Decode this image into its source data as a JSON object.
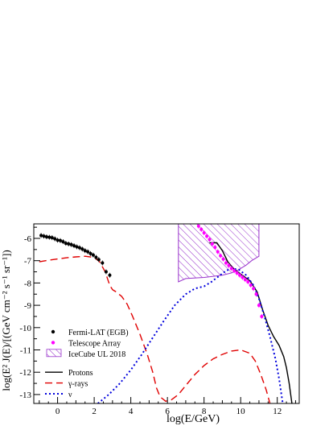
{
  "chart_data": {
    "type": "line",
    "xlabel": "log(E/GeV)",
    "ylabel": "log(E² J(E)/[(GeV cm⁻² s⁻¹ sr⁻¹])",
    "xlim": [
      -1.3,
      13.2
    ],
    "ylim": [
      -13.4,
      -5.35
    ],
    "x_ticks": [
      0,
      2,
      4,
      6,
      8,
      10,
      12
    ],
    "y_ticks": [
      -6,
      -7,
      -8,
      -9,
      -10,
      -11,
      -12,
      -13
    ],
    "legend": {
      "placement": "bottom-left",
      "entries": [
        {
          "label": "Fermi-LAT (EGB)",
          "style": "marker-dot",
          "color": "#000000"
        },
        {
          "label": "Telescope Array",
          "style": "marker-dot",
          "color": "#ff00ff"
        },
        {
          "label": "IceCube UL 2018",
          "style": "hatch",
          "color": "#9933cc"
        },
        {
          "label": "Protons",
          "style": "solid",
          "color": "#000000"
        },
        {
          "label": "γ-rays",
          "style": "dashed",
          "color": "#e00000"
        },
        {
          "label": "ν",
          "style": "dotted",
          "color": "#0000dd"
        }
      ]
    },
    "series": [
      {
        "name": "Fermi-LAT (EGB)",
        "kind": "points",
        "color": "#000000",
        "points": [
          [
            -0.9,
            -5.87
          ],
          [
            -0.75,
            -5.9
          ],
          [
            -0.6,
            -5.93
          ],
          [
            -0.45,
            -5.95
          ],
          [
            -0.3,
            -5.97
          ],
          [
            -0.15,
            -6.02
          ],
          [
            0.0,
            -6.08
          ],
          [
            0.15,
            -6.1
          ],
          [
            0.3,
            -6.15
          ],
          [
            0.45,
            -6.22
          ],
          [
            0.6,
            -6.25
          ],
          [
            0.75,
            -6.28
          ],
          [
            0.9,
            -6.33
          ],
          [
            1.05,
            -6.38
          ],
          [
            1.2,
            -6.42
          ],
          [
            1.35,
            -6.48
          ],
          [
            1.5,
            -6.55
          ],
          [
            1.65,
            -6.6
          ],
          [
            1.8,
            -6.68
          ],
          [
            1.95,
            -6.75
          ],
          [
            2.1,
            -6.85
          ],
          [
            2.25,
            -6.95
          ],
          [
            2.45,
            -7.1
          ],
          [
            2.65,
            -7.5
          ],
          [
            2.85,
            -7.65
          ]
        ]
      },
      {
        "name": "Telescope Array",
        "kind": "points",
        "color": "#ff00ff",
        "points": [
          [
            7.7,
            -5.45
          ],
          [
            7.85,
            -5.6
          ],
          [
            8.0,
            -5.75
          ],
          [
            8.15,
            -5.9
          ],
          [
            8.3,
            -6.05
          ],
          [
            8.45,
            -6.25
          ],
          [
            8.6,
            -6.4
          ],
          [
            8.75,
            -6.6
          ],
          [
            8.9,
            -6.78
          ],
          [
            9.05,
            -6.93
          ],
          [
            9.2,
            -7.1
          ],
          [
            9.35,
            -7.22
          ],
          [
            9.5,
            -7.35
          ],
          [
            9.65,
            -7.45
          ],
          [
            9.8,
            -7.55
          ],
          [
            9.95,
            -7.65
          ],
          [
            10.1,
            -7.75
          ],
          [
            10.25,
            -7.85
          ],
          [
            10.4,
            -7.95
          ],
          [
            10.55,
            -8.1
          ],
          [
            10.7,
            -8.25
          ],
          [
            10.85,
            -8.5
          ],
          [
            11.0,
            -9.0
          ],
          [
            11.15,
            -9.5
          ]
        ]
      },
      {
        "name": "IceCube UL 2018",
        "kind": "region",
        "color": "#9933cc",
        "upper": [
          [
            6.6,
            -5.35
          ],
          [
            11.0,
            -5.35
          ],
          [
            11.0,
            -6.8
          ],
          [
            10.6,
            -7.0
          ],
          [
            10.3,
            -7.2
          ],
          [
            9.8,
            -7.45
          ],
          [
            9.5,
            -7.55
          ],
          [
            9.0,
            -7.65
          ],
          [
            8.0,
            -7.75
          ],
          [
            7.0,
            -7.8
          ],
          [
            6.6,
            -7.95
          ]
        ]
      },
      {
        "name": "Protons",
        "kind": "line",
        "style": "solid",
        "color": "#000000",
        "points": [
          [
            8.3,
            -6.2
          ],
          [
            8.7,
            -6.2
          ],
          [
            9.0,
            -6.55
          ],
          [
            9.3,
            -7.05
          ],
          [
            9.6,
            -7.35
          ],
          [
            10.0,
            -7.6
          ],
          [
            10.5,
            -7.9
          ],
          [
            10.9,
            -8.4
          ],
          [
            11.2,
            -9.2
          ],
          [
            11.5,
            -9.9
          ],
          [
            11.8,
            -10.4
          ],
          [
            12.1,
            -10.8
          ],
          [
            12.35,
            -11.3
          ],
          [
            12.5,
            -11.8
          ],
          [
            12.65,
            -12.5
          ],
          [
            12.8,
            -13.4
          ]
        ]
      },
      {
        "name": "γ-rays",
        "kind": "line",
        "style": "dashed",
        "color": "#e00000",
        "points": [
          [
            -1.0,
            -7.05
          ],
          [
            -0.5,
            -6.98
          ],
          [
            0.0,
            -6.92
          ],
          [
            0.5,
            -6.87
          ],
          [
            1.0,
            -6.83
          ],
          [
            1.5,
            -6.8
          ],
          [
            2.0,
            -6.85
          ],
          [
            2.3,
            -7.05
          ],
          [
            2.6,
            -7.5
          ],
          [
            2.85,
            -8.1
          ],
          [
            3.0,
            -8.3
          ],
          [
            3.2,
            -8.4
          ],
          [
            3.5,
            -8.6
          ],
          [
            3.8,
            -8.95
          ],
          [
            4.1,
            -9.5
          ],
          [
            4.5,
            -10.3
          ],
          [
            4.9,
            -11.2
          ],
          [
            5.2,
            -12.0
          ],
          [
            5.4,
            -12.7
          ],
          [
            5.6,
            -13.1
          ],
          [
            5.9,
            -13.3
          ],
          [
            6.2,
            -13.25
          ],
          [
            6.6,
            -13.0
          ],
          [
            7.0,
            -12.6
          ],
          [
            7.5,
            -12.1
          ],
          [
            8.0,
            -11.7
          ],
          [
            8.5,
            -11.4
          ],
          [
            9.0,
            -11.2
          ],
          [
            9.5,
            -11.05
          ],
          [
            10.0,
            -11.0
          ],
          [
            10.5,
            -11.15
          ],
          [
            10.8,
            -11.5
          ],
          [
            11.1,
            -12.1
          ],
          [
            11.4,
            -12.8
          ],
          [
            11.6,
            -13.4
          ]
        ]
      },
      {
        "name": "ν",
        "kind": "line",
        "style": "dotted",
        "color": "#0000dd",
        "points": [
          [
            2.2,
            -13.4
          ],
          [
            2.8,
            -13.0
          ],
          [
            3.4,
            -12.5
          ],
          [
            4.0,
            -11.9
          ],
          [
            4.6,
            -11.2
          ],
          [
            5.2,
            -10.45
          ],
          [
            5.8,
            -9.7
          ],
          [
            6.4,
            -9.0
          ],
          [
            7.0,
            -8.5
          ],
          [
            7.5,
            -8.25
          ],
          [
            8.0,
            -8.15
          ],
          [
            8.4,
            -7.95
          ],
          [
            8.8,
            -7.7
          ],
          [
            9.2,
            -7.45
          ],
          [
            9.5,
            -7.35
          ],
          [
            9.9,
            -7.4
          ],
          [
            10.3,
            -7.65
          ],
          [
            10.7,
            -8.1
          ],
          [
            11.0,
            -8.7
          ],
          [
            11.3,
            -9.5
          ],
          [
            11.6,
            -10.4
          ],
          [
            11.9,
            -11.4
          ],
          [
            12.1,
            -12.3
          ],
          [
            12.3,
            -13.4
          ]
        ]
      }
    ]
  }
}
